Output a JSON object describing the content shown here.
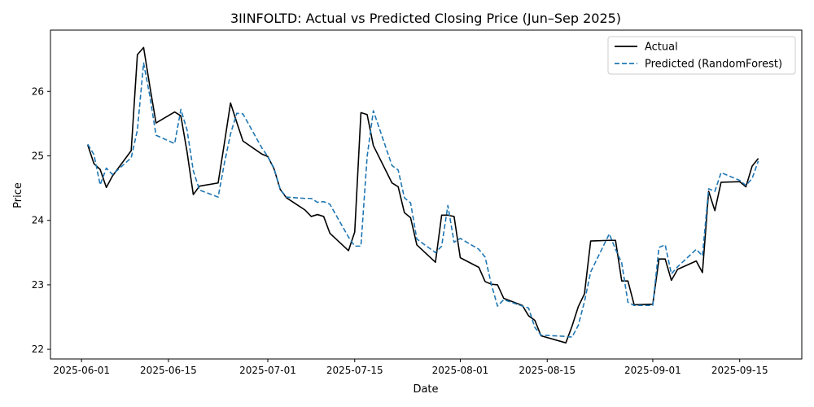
{
  "chart_data": {
    "type": "line",
    "title": "3IINFOLTD: Actual vs Predicted Closing Price (Jun–Sep 2025)",
    "xlabel": "Date",
    "ylabel": "Price",
    "xlim": [
      "2025-05-27",
      "2025-09-25"
    ],
    "ylim": [
      21.85,
      26.95
    ],
    "xticks": [
      "2025-06-01",
      "2025-06-15",
      "2025-07-01",
      "2025-07-15",
      "2025-08-01",
      "2025-08-15",
      "2025-09-01",
      "2025-09-15"
    ],
    "yticks": [
      22,
      23,
      24,
      25,
      26
    ],
    "grid": false,
    "legend": "top-right",
    "dates": [
      "2025-06-02",
      "2025-06-03",
      "2025-06-04",
      "2025-06-05",
      "2025-06-06",
      "2025-06-09",
      "2025-06-10",
      "2025-06-11",
      "2025-06-12",
      "2025-06-13",
      "2025-06-16",
      "2025-06-17",
      "2025-06-18",
      "2025-06-19",
      "2025-06-20",
      "2025-06-23",
      "2025-06-24",
      "2025-06-25",
      "2025-06-26",
      "2025-06-27",
      "2025-06-30",
      "2025-07-01",
      "2025-07-02",
      "2025-07-03",
      "2025-07-04",
      "2025-07-07",
      "2025-07-08",
      "2025-07-09",
      "2025-07-10",
      "2025-07-11",
      "2025-07-14",
      "2025-07-15",
      "2025-07-16",
      "2025-07-17",
      "2025-07-18",
      "2025-07-21",
      "2025-07-22",
      "2025-07-23",
      "2025-07-24",
      "2025-07-25",
      "2025-07-28",
      "2025-07-29",
      "2025-07-30",
      "2025-07-31",
      "2025-08-01",
      "2025-08-04",
      "2025-08-05",
      "2025-08-06",
      "2025-08-07",
      "2025-08-08",
      "2025-08-11",
      "2025-08-12",
      "2025-08-13",
      "2025-08-14",
      "2025-08-18",
      "2025-08-19",
      "2025-08-20",
      "2025-08-21",
      "2025-08-22",
      "2025-08-25",
      "2025-08-26",
      "2025-08-27",
      "2025-08-28",
      "2025-08-29",
      "2025-09-01",
      "2025-09-02",
      "2025-09-03",
      "2025-09-04",
      "2025-09-05",
      "2025-09-08",
      "2025-09-09",
      "2025-09-10",
      "2025-09-11",
      "2025-09-12",
      "2025-09-15",
      "2025-09-16",
      "2025-09-17",
      "2025-09-18"
    ],
    "series": [
      {
        "name": "Actual",
        "color": "#000000",
        "dash": "solid",
        "values": [
          25.17,
          24.88,
          24.79,
          24.51,
          24.69,
          25.08,
          26.57,
          26.68,
          26.08,
          25.51,
          25.68,
          25.62,
          25.06,
          24.4,
          24.53,
          24.58,
          25.19,
          25.82,
          25.52,
          25.23,
          25.03,
          24.99,
          24.8,
          24.48,
          24.35,
          24.16,
          24.06,
          24.09,
          24.06,
          23.8,
          23.53,
          23.82,
          25.67,
          25.64,
          25.16,
          24.58,
          24.52,
          24.12,
          24.04,
          23.62,
          23.35,
          24.08,
          24.08,
          24.06,
          23.42,
          23.27,
          23.05,
          23.01,
          23.0,
          22.79,
          22.68,
          22.52,
          22.45,
          22.21,
          22.1,
          22.36,
          22.66,
          22.86,
          23.68,
          23.69,
          23.69,
          23.06,
          23.06,
          22.69,
          22.7,
          23.4,
          23.4,
          23.07,
          23.24,
          23.37,
          23.19,
          24.45,
          24.15,
          24.59,
          24.6,
          24.52,
          24.84,
          24.96
        ]
      },
      {
        "name": "Predicted (RandomForest)",
        "color": "#1f77b4",
        "dash": "dashed",
        "values": [
          25.18,
          25.02,
          24.55,
          24.81,
          24.71,
          24.97,
          25.4,
          26.44,
          25.93,
          25.32,
          25.19,
          25.72,
          25.4,
          24.77,
          24.47,
          24.36,
          24.88,
          25.34,
          25.66,
          25.65,
          25.13,
          24.99,
          24.81,
          24.48,
          24.36,
          24.34,
          24.34,
          24.28,
          24.29,
          24.25,
          23.74,
          23.6,
          23.6,
          24.99,
          25.7,
          24.85,
          24.78,
          24.35,
          24.27,
          23.71,
          23.5,
          23.6,
          24.23,
          23.66,
          23.72,
          23.55,
          23.43,
          23.01,
          22.67,
          22.77,
          22.67,
          22.64,
          22.34,
          22.22,
          22.2,
          22.19,
          22.37,
          22.74,
          23.2,
          23.79,
          23.55,
          23.34,
          22.73,
          22.68,
          22.68,
          23.58,
          23.62,
          23.17,
          23.28,
          23.55,
          23.45,
          24.49,
          24.45,
          24.74,
          24.62,
          24.54,
          24.65,
          24.92
        ]
      }
    ]
  }
}
